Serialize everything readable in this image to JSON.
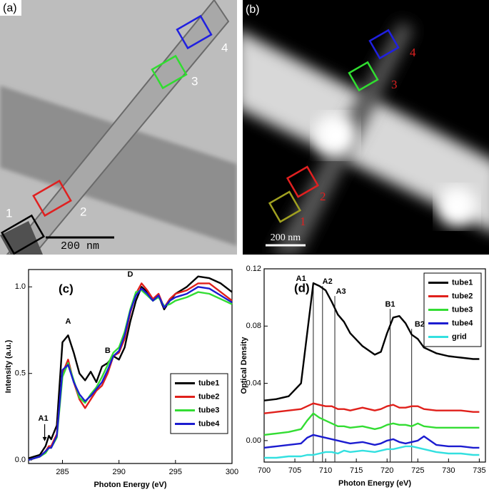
{
  "panels": {
    "a": {
      "label": "(a)",
      "boxes": [
        "1",
        "2",
        "3",
        "4"
      ],
      "scale_bar": "200 nm"
    },
    "b": {
      "label": "(b)",
      "boxes": [
        "1",
        "2",
        "3",
        "4"
      ],
      "scale_bar": "200 nm"
    }
  },
  "chart_data": [
    {
      "type": "line",
      "panel_label": "(c)",
      "x_label": "Photon Energy (eV)",
      "y_label": "Intensity (a.u.)",
      "x": [
        282,
        283,
        283.5,
        283.8,
        284,
        284.5,
        285,
        285.5,
        286,
        286.5,
        287,
        287.5,
        288,
        288.5,
        289,
        289.5,
        290,
        290.5,
        291,
        291.5,
        292,
        292.5,
        293,
        293.5,
        294,
        294.5,
        295,
        296,
        297,
        298,
        299,
        300
      ],
      "series": [
        {
          "name": "tube1",
          "color": "#000000",
          "values": [
            0.01,
            0.03,
            0.08,
            0.14,
            0.12,
            0.2,
            0.68,
            0.72,
            0.62,
            0.5,
            0.46,
            0.51,
            0.45,
            0.54,
            0.56,
            0.6,
            0.58,
            0.65,
            0.8,
            0.92,
            1.0,
            0.97,
            0.92,
            0.95,
            0.87,
            0.92,
            0.96,
            1.0,
            1.06,
            1.05,
            1.02,
            0.97
          ]
        },
        {
          "name": "tube2",
          "color": "#e0201b",
          "values": [
            0.0,
            0.02,
            0.05,
            0.08,
            0.08,
            0.15,
            0.5,
            0.58,
            0.45,
            0.35,
            0.3,
            0.35,
            0.4,
            0.43,
            0.5,
            0.6,
            0.62,
            0.7,
            0.85,
            0.96,
            1.02,
            0.98,
            0.93,
            0.96,
            0.88,
            0.93,
            0.96,
            0.98,
            1.02,
            1.02,
            0.97,
            0.92
          ]
        },
        {
          "name": "tube3",
          "color": "#33dd33",
          "values": [
            0.0,
            0.02,
            0.04,
            0.07,
            0.07,
            0.13,
            0.48,
            0.56,
            0.46,
            0.36,
            0.33,
            0.38,
            0.42,
            0.48,
            0.55,
            0.62,
            0.65,
            0.74,
            0.87,
            0.97,
            0.98,
            0.95,
            0.92,
            0.94,
            0.89,
            0.9,
            0.92,
            0.94,
            0.97,
            0.96,
            0.93,
            0.9
          ]
        },
        {
          "name": "tube4",
          "color": "#1c1cd0",
          "values": [
            0.0,
            0.02,
            0.05,
            0.07,
            0.07,
            0.14,
            0.52,
            0.55,
            0.45,
            0.38,
            0.34,
            0.37,
            0.41,
            0.45,
            0.52,
            0.6,
            0.63,
            0.72,
            0.86,
            0.95,
            0.99,
            0.96,
            0.92,
            0.95,
            0.88,
            0.92,
            0.94,
            0.96,
            1.0,
            0.99,
            0.95,
            0.91
          ]
        }
      ],
      "xlim": [
        282,
        300
      ],
      "ylim": [
        -0.02,
        1.1
      ],
      "xticks": [
        285,
        290,
        295,
        300
      ],
      "yticks": [
        {
          "value": 0,
          "label": "0.0"
        },
        0.5,
        {
          "value": 1,
          "label": "1.0"
        }
      ],
      "legend": "center right",
      "annotations": [
        {
          "text": "A1",
          "x": 283.3,
          "y": 0.24
        },
        {
          "text": "A",
          "x": 285.5,
          "y": 0.8
        },
        {
          "text": "B",
          "x": 289,
          "y": 0.63
        },
        {
          "text": "D",
          "x": 291,
          "y": 1.07
        }
      ]
    },
    {
      "type": "line",
      "panel_label": "(d)",
      "x_label": "Photon Energy (eV)",
      "y_label": "Optical Density",
      "x": [
        700,
        702,
        704,
        706,
        707,
        708,
        709,
        710,
        711,
        712,
        713,
        714,
        716,
        718,
        719,
        720,
        721,
        722,
        723,
        724,
        725,
        726,
        728,
        730,
        732,
        734,
        735
      ],
      "series": [
        {
          "name": "tube1",
          "color": "#000000",
          "values": [
            0.028,
            0.029,
            0.031,
            0.04,
            0.075,
            0.11,
            0.108,
            0.105,
            0.097,
            0.088,
            0.083,
            0.075,
            0.066,
            0.06,
            0.062,
            0.075,
            0.086,
            0.087,
            0.082,
            0.074,
            0.071,
            0.065,
            0.061,
            0.059,
            0.058,
            0.057,
            0.057
          ]
        },
        {
          "name": "tube2",
          "color": "#e0201b",
          "values": [
            0.019,
            0.02,
            0.021,
            0.022,
            0.024,
            0.026,
            0.025,
            0.024,
            0.024,
            0.022,
            0.022,
            0.021,
            0.023,
            0.021,
            0.022,
            0.024,
            0.025,
            0.023,
            0.023,
            0.024,
            0.024,
            0.022,
            0.021,
            0.021,
            0.021,
            0.02,
            0.02
          ]
        },
        {
          "name": "tube3",
          "color": "#33dd33",
          "values": [
            0.004,
            0.005,
            0.006,
            0.008,
            0.014,
            0.019,
            0.016,
            0.014,
            0.012,
            0.01,
            0.01,
            0.009,
            0.01,
            0.008,
            0.009,
            0.011,
            0.012,
            0.011,
            0.011,
            0.01,
            0.012,
            0.01,
            0.009,
            0.009,
            0.009,
            0.009,
            0.009
          ]
        },
        {
          "name": "tube4",
          "color": "#1c1cd0",
          "values": [
            -0.005,
            -0.004,
            -0.003,
            -0.002,
            0.002,
            0.004,
            0.003,
            0.002,
            0.001,
            0.0,
            -0.001,
            -0.002,
            -0.001,
            -0.003,
            -0.002,
            0.0,
            0.001,
            -0.001,
            -0.002,
            -0.001,
            0.0,
            0.003,
            -0.003,
            -0.004,
            -0.004,
            -0.005,
            -0.005
          ]
        },
        {
          "name": "grid",
          "color": "#33e0e0",
          "values": [
            -0.012,
            -0.012,
            -0.011,
            -0.011,
            -0.01,
            -0.01,
            -0.009,
            -0.008,
            -0.008,
            -0.009,
            -0.007,
            -0.008,
            -0.007,
            -0.008,
            -0.007,
            -0.006,
            -0.006,
            -0.005,
            -0.004,
            -0.004,
            -0.005,
            -0.006,
            -0.008,
            -0.009,
            -0.009,
            -0.01,
            -0.01
          ]
        }
      ],
      "xlim": [
        700,
        736
      ],
      "ylim": [
        -0.015,
        0.12
      ],
      "xticks": [
        700,
        705,
        710,
        715,
        720,
        725,
        730,
        735
      ],
      "yticks": [
        {
          "value": 0,
          "label": "0.00"
        },
        0.04,
        0.08,
        0.12
      ],
      "legend": "upper right",
      "vlines": [
        708,
        709.5,
        711.5,
        720.5,
        724
      ],
      "annotations": [
        {
          "text": "A1",
          "x": 706,
          "y": 0.113
        },
        {
          "text": "A2",
          "x": 710.3,
          "y": 0.111
        },
        {
          "text": "A3",
          "x": 712.5,
          "y": 0.104
        },
        {
          "text": "B1",
          "x": 720.5,
          "y": 0.095
        },
        {
          "text": "B2",
          "x": 725.3,
          "y": 0.081
        }
      ]
    }
  ]
}
